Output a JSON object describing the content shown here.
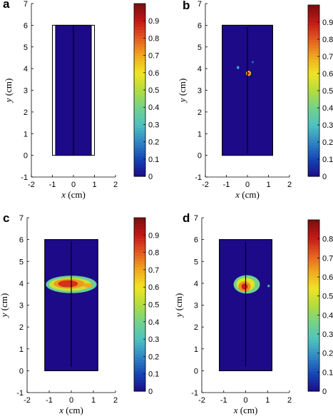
{
  "figure": {
    "background": "#ffffff",
    "colormap": [
      "#1d0a88",
      "#1446b4",
      "#2f86c4",
      "#4ec2c0",
      "#73d28a",
      "#b2dc3c",
      "#f0e424",
      "#f1a81e",
      "#e45c20",
      "#c41818",
      "#7a0e0e"
    ]
  },
  "chart_data": [
    {
      "type": "heatmap",
      "panel_label": "a",
      "xlabel_var": "x",
      "xlabel_unit": " (cm)",
      "ylabel_var": "y",
      "ylabel_unit": " (cm)",
      "xlim": [
        -2,
        2
      ],
      "ylim": [
        -1,
        7
      ],
      "xticks": [
        "-2",
        "-1",
        "0",
        "1",
        "2"
      ],
      "yticks": [
        "-1",
        "0",
        "1",
        "2",
        "3",
        "4",
        "5",
        "6",
        "7"
      ],
      "outline": {
        "x": [
          -1.0,
          1.0
        ],
        "y": [
          0,
          6
        ]
      },
      "field": {
        "x": [
          -0.85,
          0.85
        ],
        "y": [
          0,
          6
        ],
        "value": 0.0
      },
      "electrode_line": {
        "x": 0,
        "y": [
          0,
          6
        ]
      },
      "blobs": [],
      "colorbar": {
        "min": 0,
        "max": 1.0,
        "ticks": [
          "0",
          "0.1",
          "0.2",
          "0.3",
          "0.4",
          "0.5",
          "0.6",
          "0.7",
          "0.8",
          "0.9"
        ]
      }
    },
    {
      "type": "heatmap",
      "panel_label": "b",
      "xlabel_var": "x",
      "xlabel_unit": " (cm)",
      "ylabel_var": "y",
      "ylabel_unit": " (cm)",
      "xlim": [
        -2,
        2
      ],
      "ylim": [
        -1,
        7
      ],
      "xticks": [
        "-2",
        "-1",
        "0",
        "1",
        "2"
      ],
      "yticks": [
        "-1",
        "0",
        "1",
        "2",
        "3",
        "4",
        "5",
        "6",
        "7"
      ],
      "outline": {
        "x": [
          -1.2,
          1.2
        ],
        "y": [
          0,
          6
        ]
      },
      "field": {
        "x": [
          -1.2,
          1.2
        ],
        "y": [
          0,
          6
        ],
        "value": 0.0
      },
      "electrode_line": {
        "x": 0,
        "y": [
          0.1,
          5.9
        ]
      },
      "blobs": [
        {
          "cx": 0.05,
          "cy": 3.78,
          "rx": 0.12,
          "ry": 0.12,
          "value": 0.65
        },
        {
          "cx": 0.05,
          "cy": 3.78,
          "rx": 0.06,
          "ry": 0.06,
          "value": 0.85
        },
        {
          "cx": -0.45,
          "cy": 4.05,
          "rx": 0.06,
          "ry": 0.07,
          "value": 0.25
        },
        {
          "cx": 0.25,
          "cy": 4.3,
          "rx": 0.04,
          "ry": 0.05,
          "value": 0.2
        }
      ],
      "colorbar": {
        "min": 0,
        "max": 1.0,
        "ticks": [
          "0",
          "0.1",
          "0.2",
          "0.3",
          "0.4",
          "0.5",
          "0.6",
          "0.7",
          "0.8",
          "0.9"
        ]
      }
    },
    {
      "type": "heatmap",
      "panel_label": "c",
      "xlabel_var": "x",
      "xlabel_unit": " (cm)",
      "ylabel_var": "y",
      "ylabel_unit": " (cm)",
      "xlim": [
        -2,
        2
      ],
      "ylim": [
        -1,
        7
      ],
      "xticks": [
        "-2",
        "-1",
        "0",
        "1",
        "2"
      ],
      "yticks": [
        "-1",
        "0",
        "1",
        "2",
        "3",
        "4",
        "5",
        "6",
        "7"
      ],
      "outline": {
        "x": [
          -1.2,
          1.2
        ],
        "y": [
          0,
          6
        ]
      },
      "field": {
        "x": [
          -1.2,
          1.2
        ],
        "y": [
          0,
          6
        ],
        "value": 0.0
      },
      "electrode_line": {
        "x": 0,
        "y": [
          0.2,
          5.9
        ]
      },
      "blobs": [
        {
          "cx": 0.0,
          "cy": 3.95,
          "rx": 1.15,
          "ry": 0.4,
          "value": 0.38
        },
        {
          "cx": -0.05,
          "cy": 3.95,
          "rx": 0.95,
          "ry": 0.3,
          "value": 0.55
        },
        {
          "cx": -0.1,
          "cy": 3.98,
          "rx": 0.7,
          "ry": 0.22,
          "value": 0.72
        },
        {
          "cx": -0.15,
          "cy": 3.98,
          "rx": 0.45,
          "ry": 0.16,
          "value": 0.86
        },
        {
          "cx": 0.75,
          "cy": 3.9,
          "rx": 0.2,
          "ry": 0.1,
          "value": 0.7
        }
      ],
      "colorbar": {
        "min": 0,
        "max": 1.0,
        "ticks": [
          "0",
          "0.1",
          "0.2",
          "0.3",
          "0.4",
          "0.5",
          "0.6",
          "0.7",
          "0.8",
          "0.9"
        ]
      }
    },
    {
      "type": "heatmap",
      "panel_label": "d",
      "xlabel_var": "x",
      "xlabel_unit": " (cm)",
      "ylabel_var": "y",
      "ylabel_unit": " (cm)",
      "xlim": [
        -2,
        2
      ],
      "ylim": [
        -1,
        7
      ],
      "xticks": [
        "-2",
        "-1",
        "0",
        "1",
        "2"
      ],
      "yticks": [
        "-1",
        "0",
        "1",
        "2",
        "3",
        "4",
        "5",
        "6",
        "7"
      ],
      "outline": {
        "x": [
          -1.2,
          1.2
        ],
        "y": [
          0,
          6
        ]
      },
      "field": {
        "x": [
          -1.2,
          1.2
        ],
        "y": [
          0,
          6
        ],
        "value": 0.0
      },
      "electrode_line": {
        "x": 0,
        "y": [
          0.2,
          5.9
        ]
      },
      "blobs": [
        {
          "cx": 0.05,
          "cy": 3.95,
          "rx": 0.6,
          "ry": 0.42,
          "value": 0.36
        },
        {
          "cx": 0.0,
          "cy": 3.95,
          "rx": 0.42,
          "ry": 0.3,
          "value": 0.52
        },
        {
          "cx": -0.05,
          "cy": 3.85,
          "rx": 0.28,
          "ry": 0.24,
          "value": 0.66
        },
        {
          "cx": -0.05,
          "cy": 3.85,
          "rx": 0.14,
          "ry": 0.14,
          "value": 0.8
        },
        {
          "cx": 1.05,
          "cy": 3.88,
          "rx": 0.05,
          "ry": 0.06,
          "value": 0.25
        }
      ],
      "colorbar": {
        "min": 0,
        "max": 0.9,
        "ticks": [
          "0",
          "0.1",
          "0.2",
          "0.3",
          "0.4",
          "0.5",
          "0.6",
          "0.7",
          "0.8"
        ]
      }
    }
  ]
}
